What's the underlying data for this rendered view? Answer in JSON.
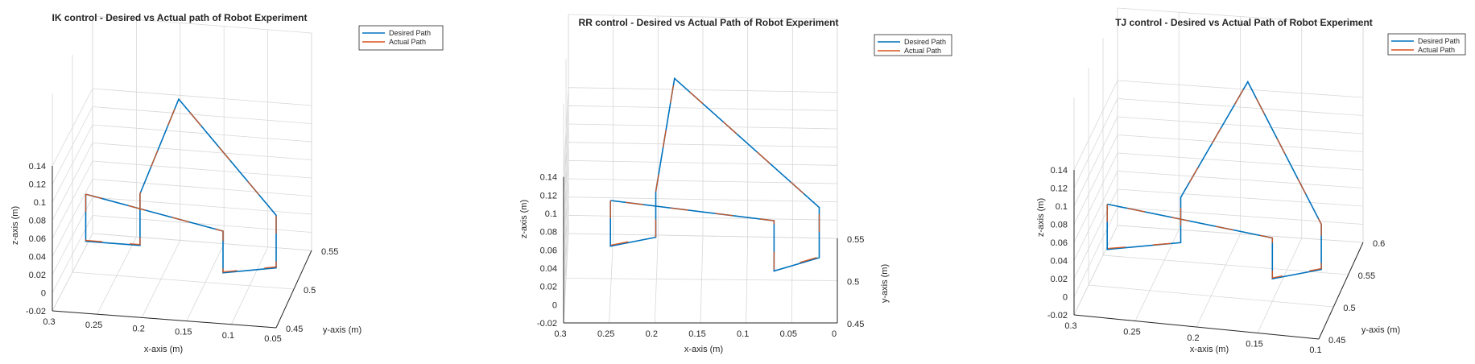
{
  "chart_data": [
    {
      "type": "line3d",
      "title": "IK control - Desired vs Actual path of Robot Experiment",
      "xlabel": "x-axis (m)",
      "ylabel": "y-axis (m)",
      "zlabel": "z-axis (m)",
      "x_ticks": [
        "0.3",
        "0.25",
        "0.2",
        "0.15",
        "0.1",
        "0.05"
      ],
      "y_ticks": [
        "0.45",
        "0.5",
        "0.55"
      ],
      "z_ticks": [
        "-0.02",
        "0",
        "0.02",
        "0.04",
        "0.06",
        "0.08",
        "0.1",
        "0.12",
        "0.14"
      ],
      "grid": true,
      "legend_position": "top-right",
      "series": [
        {
          "name": "Desired Path",
          "color": "#0072BD",
          "points": [
            [
              0.276,
              0.48,
              0.085
            ],
            [
              0.276,
              0.48,
              0.033
            ],
            [
              0.215,
              0.48,
              0.033
            ],
            [
              0.215,
              0.48,
              0.085
            ],
            [
              0.215,
              0.48,
              0.09
            ],
            [
              0.18,
              0.5,
              0.18
            ],
            [
              0.07,
              0.5,
              0.06
            ],
            [
              0.07,
              0.5,
              0.002
            ],
            [
              0.13,
              0.5,
              -0.008
            ],
            [
              0.13,
              0.5,
              0.038
            ],
            [
              0.276,
              0.48,
              0.085
            ]
          ]
        },
        {
          "name": "Actual Path",
          "color": "#D95319",
          "points": [
            [
              0.276,
              0.48,
              0.085
            ],
            [
              0.276,
              0.48,
              0.034
            ],
            [
              0.215,
              0.48,
              0.034
            ],
            [
              0.215,
              0.48,
              0.09
            ],
            [
              0.18,
              0.5,
              0.18
            ],
            [
              0.07,
              0.5,
              0.06
            ],
            [
              0.07,
              0.5,
              0.003
            ],
            [
              0.13,
              0.5,
              -0.007
            ],
            [
              0.13,
              0.5,
              0.038
            ],
            [
              0.276,
              0.48,
              0.085
            ]
          ]
        }
      ]
    },
    {
      "type": "line3d",
      "title": "RR control - Desired vs Actual Path of Robot Experiment",
      "xlabel": "x-axis (m)",
      "ylabel": "y-axis (m)",
      "zlabel": "z-axis (m)",
      "x_ticks": [
        "0.3",
        "0.25",
        "0.2",
        "0.15",
        "0.1",
        "0.05",
        "0"
      ],
      "y_ticks": [
        "0.45",
        "0.5",
        "0.55"
      ],
      "z_ticks": [
        "-0.02",
        "0",
        "0.02",
        "0.04",
        "0.06",
        "0.08",
        "0.1",
        "0.12",
        "0.14"
      ],
      "grid": true,
      "legend_position": "top-right",
      "series": [
        {
          "name": "Desired Path",
          "color": "#0072BD",
          "points": [
            [
              0.25,
              0.48,
              0.085
            ],
            [
              0.25,
              0.48,
              0.035
            ],
            [
              0.2,
              0.48,
              0.045
            ],
            [
              0.2,
              0.48,
              0.095
            ],
            [
              0.18,
              0.5,
              0.2
            ],
            [
              0.02,
              0.5,
              0.06
            ],
            [
              0.02,
              0.5,
              0.005
            ],
            [
              0.07,
              0.5,
              -0.01
            ],
            [
              0.07,
              0.5,
              0.045
            ],
            [
              0.25,
              0.48,
              0.085
            ]
          ]
        },
        {
          "name": "Actual Path",
          "color": "#D95319",
          "points": [
            [
              0.25,
              0.48,
              0.085
            ],
            [
              0.25,
              0.48,
              0.036
            ],
            [
              0.2,
              0.48,
              0.046
            ],
            [
              0.2,
              0.48,
              0.095
            ],
            [
              0.18,
              0.5,
              0.2
            ],
            [
              0.02,
              0.5,
              0.06
            ],
            [
              0.02,
              0.5,
              0.006
            ],
            [
              0.07,
              0.5,
              -0.009
            ],
            [
              0.07,
              0.5,
              0.045
            ],
            [
              0.25,
              0.48,
              0.085
            ]
          ]
        }
      ]
    },
    {
      "type": "line3d",
      "title": "TJ control - Desired vs Actual Path of Robot Experiment",
      "xlabel": "x-axis (m)",
      "ylabel": "y-axis (m)",
      "zlabel": "z-axis (m)",
      "x_ticks": [
        "0.3",
        "0.25",
        "0.2",
        "0.15",
        "0.1"
      ],
      "y_ticks": [
        "0.45",
        "0.5",
        "0.55",
        "0.6"
      ],
      "z_ticks": [
        "-0.02",
        "0",
        "0.02",
        "0.04",
        "0.06",
        "0.08",
        "0.1",
        "0.12",
        "0.14"
      ],
      "grid": true,
      "legend_position": "top-right",
      "series": [
        {
          "name": "Desired Path",
          "color": "#0072BD",
          "points": [
            [
              0.28,
              0.48,
              0.085
            ],
            [
              0.28,
              0.48,
              0.035
            ],
            [
              0.22,
              0.48,
              0.05
            ],
            [
              0.22,
              0.48,
              0.1
            ],
            [
              0.17,
              0.5,
              0.22
            ],
            [
              0.11,
              0.5,
              0.07
            ],
            [
              0.11,
              0.5,
              0.02
            ],
            [
              0.15,
              0.5,
              0.005
            ],
            [
              0.15,
              0.5,
              0.05
            ],
            [
              0.28,
              0.48,
              0.085
            ]
          ]
        },
        {
          "name": "Actual Path",
          "color": "#D95319",
          "points": [
            [
              0.28,
              0.48,
              0.085
            ],
            [
              0.28,
              0.48,
              0.036
            ],
            [
              0.22,
              0.48,
              0.05
            ],
            [
              0.22,
              0.48,
              0.1
            ],
            [
              0.17,
              0.5,
              0.22
            ],
            [
              0.11,
              0.5,
              0.07
            ],
            [
              0.11,
              0.5,
              0.021
            ],
            [
              0.15,
              0.5,
              0.006
            ],
            [
              0.15,
              0.5,
              0.05
            ],
            [
              0.28,
              0.48,
              0.085
            ]
          ]
        }
      ]
    }
  ]
}
